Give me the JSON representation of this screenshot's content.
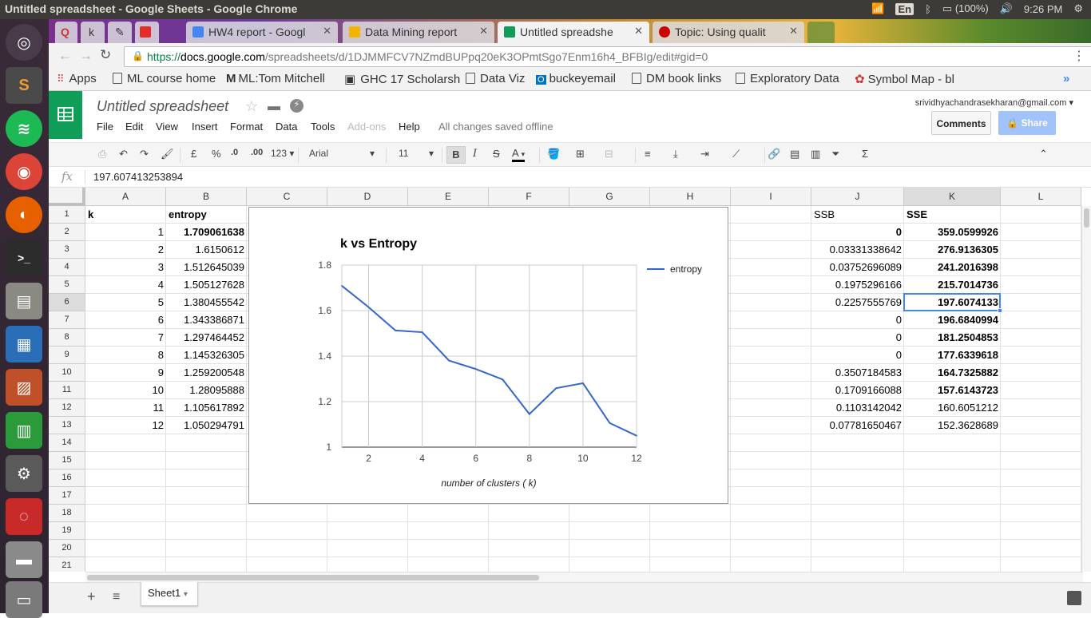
{
  "window": {
    "title": "Untitled spreadsheet - Google Sheets - Google Chrome",
    "language": "En",
    "battery": "(100%)",
    "clock": "9:26 PM"
  },
  "tabs": [
    {
      "label": "HW4 report - Googl",
      "color": "#4285f4"
    },
    {
      "label": "Data Mining report",
      "color": "#f4b400"
    },
    {
      "label": "Untitled spreadshe",
      "color": "#0f9d58"
    },
    {
      "label": "Topic: Using qualit",
      "color": "#cc0000"
    }
  ],
  "address": {
    "scheme": "https://",
    "host": "docs.google.com",
    "path": "/spreadsheets/d/1DJMMFCV7NZmdBUPpq20eK3OPmtSgo7Enm16h4_BFBIg/edit#gid=0"
  },
  "bookmarks": [
    "Apps",
    "ML course home",
    "ML:Tom Mitchell",
    "GHC 17 Scholarsh",
    "Data Viz",
    "buckeyemail",
    "DM book links",
    "Exploratory Data",
    "Symbol Map - bl"
  ],
  "doc": {
    "title": "Untitled spreadsheet",
    "user_email": "srividhyachandrasekharan@gmail.com",
    "save_status": "All changes saved offline",
    "comments_label": "Comments",
    "share_label": "Share"
  },
  "menu": [
    "File",
    "Edit",
    "View",
    "Insert",
    "Format",
    "Data",
    "Tools",
    "Add-ons",
    "Help"
  ],
  "format_toolbar": {
    "currency": "£",
    "percent": "%",
    "decrease_decimals": ".0",
    "increase_decimals": ".00",
    "number_format": "123",
    "font": "Arial",
    "font_size": "11",
    "bold": "B",
    "italic": "I",
    "strikethrough": "S",
    "text_color": "A"
  },
  "formula_bar": {
    "fx": "fx",
    "value": "197.607413253894"
  },
  "columns": [
    "A",
    "B",
    "C",
    "D",
    "E",
    "F",
    "G",
    "H",
    "I",
    "J",
    "K",
    "L"
  ],
  "rows": [
    "1",
    "2",
    "3",
    "4",
    "5",
    "6",
    "7",
    "8",
    "9",
    "10",
    "11",
    "12",
    "13",
    "14",
    "15",
    "16",
    "17",
    "18",
    "19",
    "20",
    "21"
  ],
  "cells": {
    "A1": "k",
    "B1": "entropy",
    "J1": "SSB",
    "K1": "SSE",
    "A": [
      "1",
      "2",
      "3",
      "4",
      "5",
      "6",
      "7",
      "8",
      "9",
      "10",
      "11",
      "12"
    ],
    "B": [
      "1.709061638",
      "1.6150612",
      "1.512645039",
      "1.505127628",
      "1.380455542",
      "1.343386871",
      "1.297464452",
      "1.145326305",
      "1.259200548",
      "1.28095888",
      "1.105617892",
      "1.050294791"
    ],
    "J": [
      "0",
      "0.03331338642",
      "0.03752696089",
      "0.1975296166",
      "0.2257555769",
      "0",
      "0",
      "0",
      "0.3507184583",
      "0.1709166088",
      "0.1103142042",
      "0.07781650467"
    ],
    "K": [
      "359.0599926",
      "276.9136305",
      "241.2016398",
      "215.7014736",
      "197.6074133",
      "196.6840994",
      "181.2504853",
      "177.6339618",
      "164.7325882",
      "157.6143723",
      "160.6051212",
      "152.3628689"
    ]
  },
  "chart_data": {
    "type": "line",
    "title": "k vs Entropy",
    "xlabel": "number of clusters ( k)",
    "ylabel": "",
    "x": [
      1,
      2,
      3,
      4,
      5,
      6,
      7,
      8,
      9,
      10,
      11,
      12
    ],
    "series": [
      {
        "name": "entropy",
        "color": "#3366cc",
        "values": [
          1.709061638,
          1.6150612,
          1.512645039,
          1.505127628,
          1.380455542,
          1.343386871,
          1.297464452,
          1.145326305,
          1.259200548,
          1.28095888,
          1.105617892,
          1.050294791
        ]
      }
    ],
    "xlim": [
      1,
      12
    ],
    "ylim": [
      1,
      1.8
    ],
    "xticks": [
      "2",
      "4",
      "6",
      "8",
      "10",
      "12"
    ],
    "yticks": [
      "1",
      "1.2",
      "1.4",
      "1.6",
      "1.8"
    ],
    "legend": "right",
    "grid": true
  },
  "sheets": {
    "active": "Sheet1"
  }
}
